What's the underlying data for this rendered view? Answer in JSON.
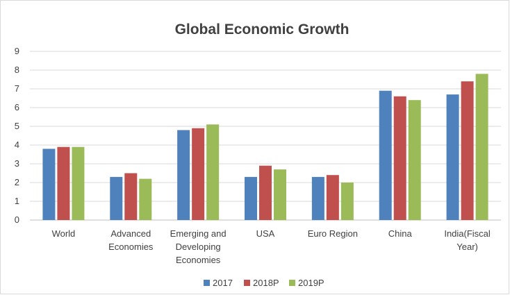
{
  "chart_data": {
    "type": "bar",
    "title": "Global Economic Growth",
    "xlabel": "",
    "ylabel": "",
    "ylim": [
      0,
      9
    ],
    "yticks": [
      "0",
      "1",
      "2",
      "3",
      "4",
      "5",
      "6",
      "7",
      "8",
      "9"
    ],
    "grid": true,
    "legend": "bottom",
    "categories": [
      [
        "World"
      ],
      [
        "Advanced",
        "Economies"
      ],
      [
        "Emerging and",
        "Developing",
        "Economies"
      ],
      [
        "USA"
      ],
      [
        "Euro Region"
      ],
      [
        "China"
      ],
      [
        "India(Fiscal",
        "Year)"
      ]
    ],
    "series": [
      {
        "name": "2017",
        "color": "#4f81bd",
        "values": [
          3.8,
          2.3,
          4.8,
          2.3,
          2.3,
          6.9,
          6.7
        ]
      },
      {
        "name": "2018P",
        "color": "#c0504d",
        "values": [
          3.9,
          2.5,
          4.9,
          2.9,
          2.4,
          6.6,
          7.4
        ]
      },
      {
        "name": "2019P",
        "color": "#9bbb59",
        "values": [
          3.9,
          2.2,
          5.1,
          2.7,
          2.0,
          6.4,
          7.8
        ]
      }
    ]
  }
}
